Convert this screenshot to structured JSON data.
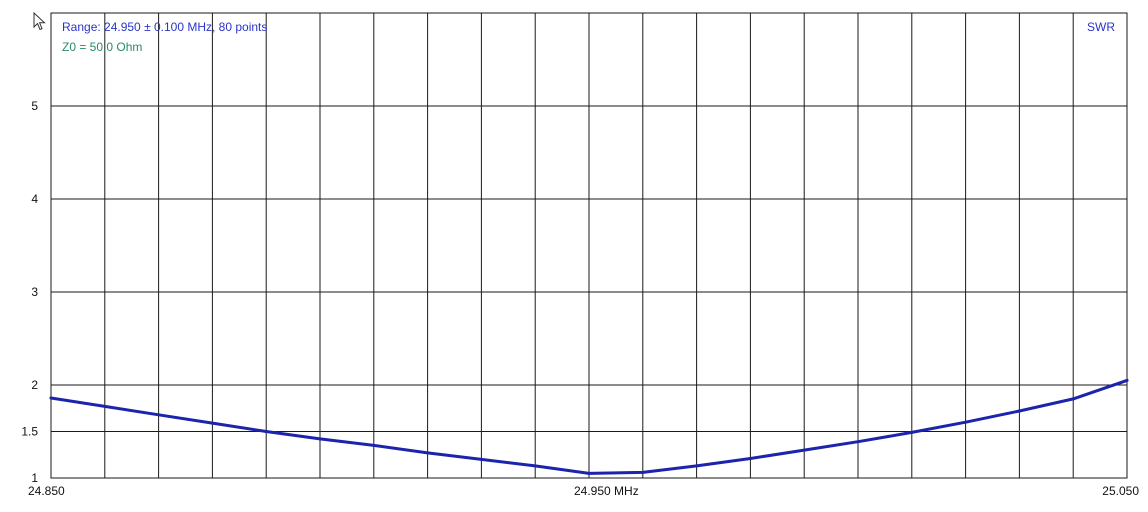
{
  "header": {
    "range_text": "Range: 24.950 ± 0.100 MHz, 80 points",
    "z0_text": "Z0 = 50.0 Ohm",
    "mode_label": "SWR"
  },
  "colors": {
    "series": "#1c23ad",
    "range_text": "#2a35c8",
    "z0_text": "#2a8a6a",
    "grid": "#1a1a1a",
    "background": "#ffffff"
  },
  "chart_data": {
    "type": "line",
    "xlabel": "MHz",
    "x_tick_labels": [
      "24.850",
      "24.950 MHz",
      "25.050"
    ],
    "x_tick_values": [
      24.85,
      24.95,
      25.05
    ],
    "xlim": [
      24.85,
      25.05
    ],
    "y_tick_labels": [
      "1",
      "1.5",
      "2",
      "3",
      "4",
      "5"
    ],
    "y_tick_values": [
      1,
      1.5,
      2,
      3,
      4,
      5
    ],
    "ylim": [
      1,
      6
    ],
    "grid": true,
    "vertical_grid_divisions": 20,
    "series": [
      {
        "x": [
          24.85,
          24.86,
          24.87,
          24.88,
          24.89,
          24.9,
          24.91,
          24.92,
          24.93,
          24.94,
          24.95,
          24.96,
          24.97,
          24.98,
          24.99,
          25.0,
          25.01,
          25.02,
          25.03,
          25.04,
          25.05
        ],
        "y": [
          1.86,
          1.77,
          1.68,
          1.59,
          1.5,
          1.42,
          1.35,
          1.27,
          1.2,
          1.13,
          1.05,
          1.06,
          1.13,
          1.21,
          1.3,
          1.39,
          1.49,
          1.6,
          1.72,
          1.85,
          2.05
        ]
      }
    ]
  }
}
